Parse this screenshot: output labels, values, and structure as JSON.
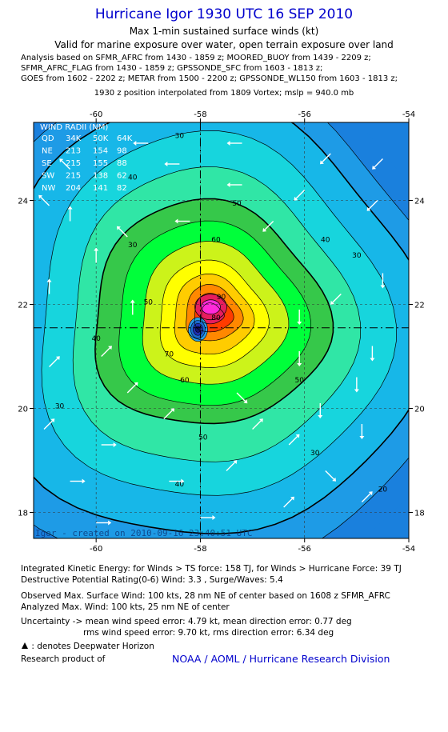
{
  "header": {
    "title": "Hurricane Igor 1930 UTC 16 SEP 2010",
    "subtitle": "Max 1-min sustained surface winds (kt)",
    "validity": "Valid for marine exposure over water, open terrain exposure over land",
    "sources": [
      "Analysis based on SFMR_AFRC from 1430 - 1859 z; MOORED_BUOY from 1439 - 2209 z;",
      "SFMR_AFRC_FLAG from 1430 - 1859 z; GPSSONDE_SFC from 1603 - 1813 z;",
      "GOES from 1602 - 2202 z; METAR from 1500 - 2200 z; GPSSONDE_WL150 from 1603 - 1813 z;"
    ],
    "position_note": "1930 z position interpolated from 1809 Vortex; mslp = 940.0 mb"
  },
  "chart_data": {
    "type": "contour",
    "title": "Hurricane Igor 1930 UTC 16 SEP 2010",
    "xlabel": "",
    "ylabel": "",
    "xlim": [
      -61.2,
      -54
    ],
    "ylim": [
      17.5,
      25.5
    ],
    "x_ticks": [
      -60,
      -58,
      -56,
      -54
    ],
    "x_tick_labels": [
      "-60",
      "-58",
      "-56",
      "-54"
    ],
    "y_ticks": [
      18,
      20,
      22,
      24
    ],
    "y_tick_labels": [
      "18",
      "20",
      "22",
      "24"
    ],
    "center": {
      "lon": -58.0,
      "lat": 21.55
    },
    "max_wind_location": {
      "lon": -57.8,
      "lat": 21.95
    },
    "contour_levels": [
      20,
      30,
      40,
      50,
      60,
      70,
      80,
      90,
      100
    ],
    "fill_colors": [
      "#1a80dd",
      "#1e9be6",
      "#17b7e8",
      "#17d5dd",
      "#30e6a6",
      "#36c84a",
      "#00ff3a",
      "#ccf31a",
      "#ffff00",
      "#ffcc00",
      "#ff8800",
      "#ff3b00",
      "#e61e5e",
      "#ff2ad8"
    ],
    "contour_labels": [
      {
        "text": "30",
        "lon": -58.4,
        "lat": 25.2
      },
      {
        "text": "30",
        "lon": -59.3,
        "lat": 23.1
      },
      {
        "text": "30",
        "lon": -55.0,
        "lat": 22.9
      },
      {
        "text": "30",
        "lon": -60.7,
        "lat": 20.0
      },
      {
        "text": "30",
        "lon": -55.8,
        "lat": 19.1
      },
      {
        "text": "20",
        "lon": -54.5,
        "lat": 18.4
      },
      {
        "text": "40",
        "lon": -59.3,
        "lat": 24.4
      },
      {
        "text": "40",
        "lon": -55.6,
        "lat": 23.2
      },
      {
        "text": "40",
        "lon": -60.0,
        "lat": 21.3
      },
      {
        "text": "40",
        "lon": -58.4,
        "lat": 18.5
      },
      {
        "text": "50",
        "lon": -57.3,
        "lat": 23.9
      },
      {
        "text": "50",
        "lon": -59.0,
        "lat": 22.0
      },
      {
        "text": "50",
        "lon": -56.1,
        "lat": 20.5
      },
      {
        "text": "50",
        "lon": -57.95,
        "lat": 19.4
      },
      {
        "text": "60",
        "lon": -57.7,
        "lat": 23.2
      },
      {
        "text": "60",
        "lon": -58.3,
        "lat": 20.5
      },
      {
        "text": "70",
        "lon": -58.6,
        "lat": 21.0
      },
      {
        "text": "80",
        "lon": -57.7,
        "lat": 21.7
      },
      {
        "text": "90",
        "lon": -57.6,
        "lat": 22.1
      }
    ],
    "wind_radii_table": {
      "title": "WIND RADII (NM)",
      "header": [
        "QD",
        "34K",
        "50K",
        "64K"
      ],
      "rows": [
        [
          "NE",
          "213",
          "154",
          "98"
        ],
        [
          "SE",
          "215",
          "155",
          "88"
        ],
        [
          "SW",
          "215",
          "138",
          "62"
        ],
        [
          "NW",
          "204",
          "141",
          "82"
        ]
      ]
    },
    "wind_arrows": [
      {
        "lon": -59.0,
        "lat": 25.1,
        "dir": "w"
      },
      {
        "lon": -57.2,
        "lat": 25.1,
        "dir": "w"
      },
      {
        "lon": -55.5,
        "lat": 24.9,
        "dir": "sw"
      },
      {
        "lon": -54.5,
        "lat": 24.8,
        "dir": "sw"
      },
      {
        "lon": -60.5,
        "lat": 24.6,
        "dir": "nw"
      },
      {
        "lon": -58.4,
        "lat": 24.7,
        "dir": "w"
      },
      {
        "lon": -60.9,
        "lat": 23.9,
        "dir": "nw"
      },
      {
        "lon": -57.2,
        "lat": 24.3,
        "dir": "w"
      },
      {
        "lon": -56.0,
        "lat": 24.2,
        "dir": "sw"
      },
      {
        "lon": -54.6,
        "lat": 24.0,
        "dir": "sw"
      },
      {
        "lon": -60.5,
        "lat": 23.6,
        "dir": "n"
      },
      {
        "lon": -59.4,
        "lat": 23.3,
        "dir": "nw"
      },
      {
        "lon": -58.2,
        "lat": 23.6,
        "dir": "w"
      },
      {
        "lon": -56.6,
        "lat": 23.6,
        "dir": "sw"
      },
      {
        "lon": -60.0,
        "lat": 22.8,
        "dir": "n"
      },
      {
        "lon": -55.3,
        "lat": 22.2,
        "dir": "sw"
      },
      {
        "lon": -54.5,
        "lat": 22.6,
        "dir": "s"
      },
      {
        "lon": -60.9,
        "lat": 22.2,
        "dir": "n"
      },
      {
        "lon": -59.3,
        "lat": 21.8,
        "dir": "n"
      },
      {
        "lon": -56.1,
        "lat": 21.9,
        "dir": "s"
      },
      {
        "lon": -54.7,
        "lat": 21.2,
        "dir": "s"
      },
      {
        "lon": -60.9,
        "lat": 20.8,
        "dir": "ne"
      },
      {
        "lon": -59.9,
        "lat": 21.0,
        "dir": "ne"
      },
      {
        "lon": -56.1,
        "lat": 21.1,
        "dir": "s"
      },
      {
        "lon": -55.0,
        "lat": 20.6,
        "dir": "s"
      },
      {
        "lon": -59.4,
        "lat": 20.3,
        "dir": "ne"
      },
      {
        "lon": -57.3,
        "lat": 20.3,
        "dir": "se"
      },
      {
        "lon": -55.7,
        "lat": 20.1,
        "dir": "s"
      },
      {
        "lon": -61.0,
        "lat": 19.6,
        "dir": "ne"
      },
      {
        "lon": -58.7,
        "lat": 19.8,
        "dir": "ne"
      },
      {
        "lon": -57.0,
        "lat": 19.6,
        "dir": "ne"
      },
      {
        "lon": -54.9,
        "lat": 19.7,
        "dir": "s"
      },
      {
        "lon": -59.9,
        "lat": 19.3,
        "dir": "e"
      },
      {
        "lon": -56.3,
        "lat": 19.3,
        "dir": "ne"
      },
      {
        "lon": -60.5,
        "lat": 18.6,
        "dir": "e"
      },
      {
        "lon": -58.6,
        "lat": 18.6,
        "dir": "e"
      },
      {
        "lon": -57.5,
        "lat": 18.8,
        "dir": "ne"
      },
      {
        "lon": -55.6,
        "lat": 18.8,
        "dir": "se"
      },
      {
        "lon": -60.0,
        "lat": 17.8,
        "dir": "e"
      },
      {
        "lon": -58.0,
        "lat": 17.9,
        "dir": "e"
      },
      {
        "lon": -56.4,
        "lat": 18.1,
        "dir": "ne"
      },
      {
        "lon": -54.9,
        "lat": 18.2,
        "dir": "ne"
      }
    ],
    "watermark": "Igor - created on 2010-09-16 23:40:51 UTC"
  },
  "footer": {
    "ike": "Integrated Kinetic Energy:  for Winds > TS force: 158 TJ,  for Winds > Hurricane Force: 39 TJ",
    "dpr": "Destructive Potential Rating(0-6)  Wind: 3.3 , Surge/Waves: 5.4",
    "observed_max": "Observed Max. Surface Wind: 100 kts, 28 nm NE of center based on 1608 z SFMR_AFRC",
    "analyzed_max": "Analyzed Max. Wind: 100 kts, 25 nm NE of center",
    "uncertainty_1": "Uncertainty -> mean wind speed error: 4.79 kt,   mean direction error: 0.77 deg",
    "uncertainty_2": "rms wind speed error: 9.70 kt,   rms direction error: 6.34 deg",
    "deepwater_note": ": denotes Deepwater Horizon",
    "research_product": "Research product of",
    "noaa": "NOAA / AOML / Hurricane Research Division"
  }
}
